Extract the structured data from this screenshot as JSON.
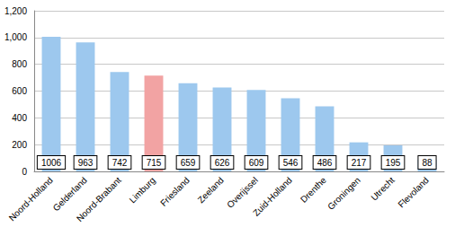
{
  "chart_data": {
    "type": "bar",
    "categories": [
      "Noord-Holland",
      "Gelderland",
      "Noord-Brabant",
      "Limburg",
      "Friesland",
      "Zeeland",
      "Overijssel",
      "Zuid-Holland",
      "Drenthe",
      "Groningen",
      "Utrecht",
      "Flevoland"
    ],
    "values": [
      1006,
      963,
      742,
      715,
      659,
      626,
      609,
      546,
      486,
      217,
      195,
      88
    ],
    "colors": [
      "#9dc8ee",
      "#9dc8ee",
      "#9dc8ee",
      "#f2a3a3",
      "#9dc8ee",
      "#9dc8ee",
      "#9dc8ee",
      "#9dc8ee",
      "#9dc8ee",
      "#9dc8ee",
      "#9dc8ee",
      "#9dc8ee"
    ],
    "ylim": [
      0,
      1200
    ],
    "yticks": [
      0,
      200,
      400,
      600,
      800,
      1000,
      1200
    ],
    "grid": true,
    "data_labels": true
  }
}
